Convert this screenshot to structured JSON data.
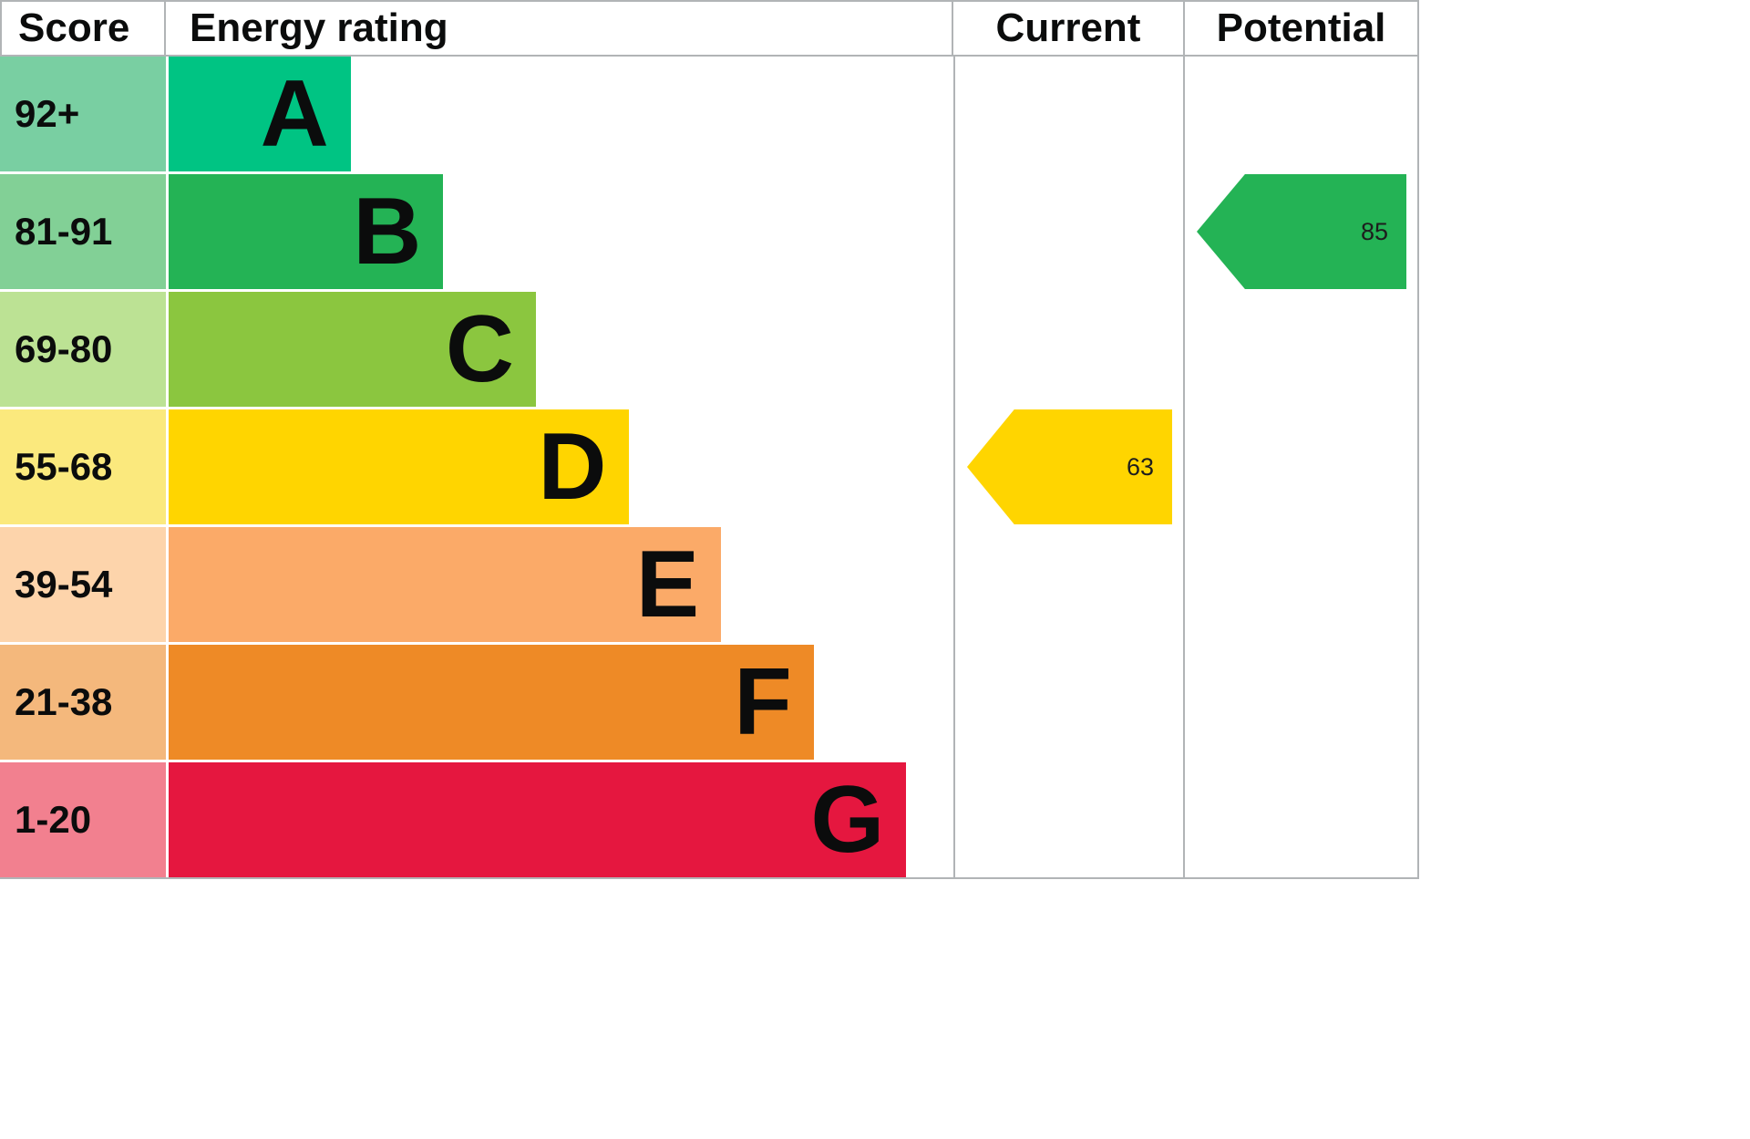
{
  "header": {
    "score_label": "Score",
    "rating_label": "Energy rating",
    "current_label": "Current",
    "potential_label": "Potential"
  },
  "chart_data": {
    "type": "bar",
    "title": "Energy rating",
    "bands": [
      {
        "score": "92+",
        "letter": "A",
        "bar_color": "#00c483",
        "score_bg": "#79cfa2",
        "width_pct": 23.2
      },
      {
        "score": "81-91",
        "letter": "B",
        "bar_color": "#24b355",
        "score_bg": "#82d096",
        "width_pct": 35.0
      },
      {
        "score": "69-80",
        "letter": "C",
        "bar_color": "#8bc63f",
        "score_bg": "#bce294",
        "width_pct": 46.8
      },
      {
        "score": "55-68",
        "letter": "D",
        "bar_color": "#ffd500",
        "score_bg": "#fbe97d",
        "width_pct": 58.6
      },
      {
        "score": "39-54",
        "letter": "E",
        "bar_color": "#fbaa68",
        "score_bg": "#fdd4ab",
        "width_pct": 70.4
      },
      {
        "score": "21-38",
        "letter": "F",
        "bar_color": "#ee8a26",
        "score_bg": "#f4b87c",
        "width_pct": 82.2
      },
      {
        "score": "1-20",
        "letter": "G",
        "bar_color": "#e5173f",
        "score_bg": "#f2808f",
        "width_pct": 94.0
      }
    ],
    "current": {
      "value": 63,
      "band": "D",
      "band_index": 3,
      "color": "#ffd500"
    },
    "potential": {
      "value": 85,
      "band": "B",
      "band_index": 1,
      "color": "#24b355"
    }
  }
}
